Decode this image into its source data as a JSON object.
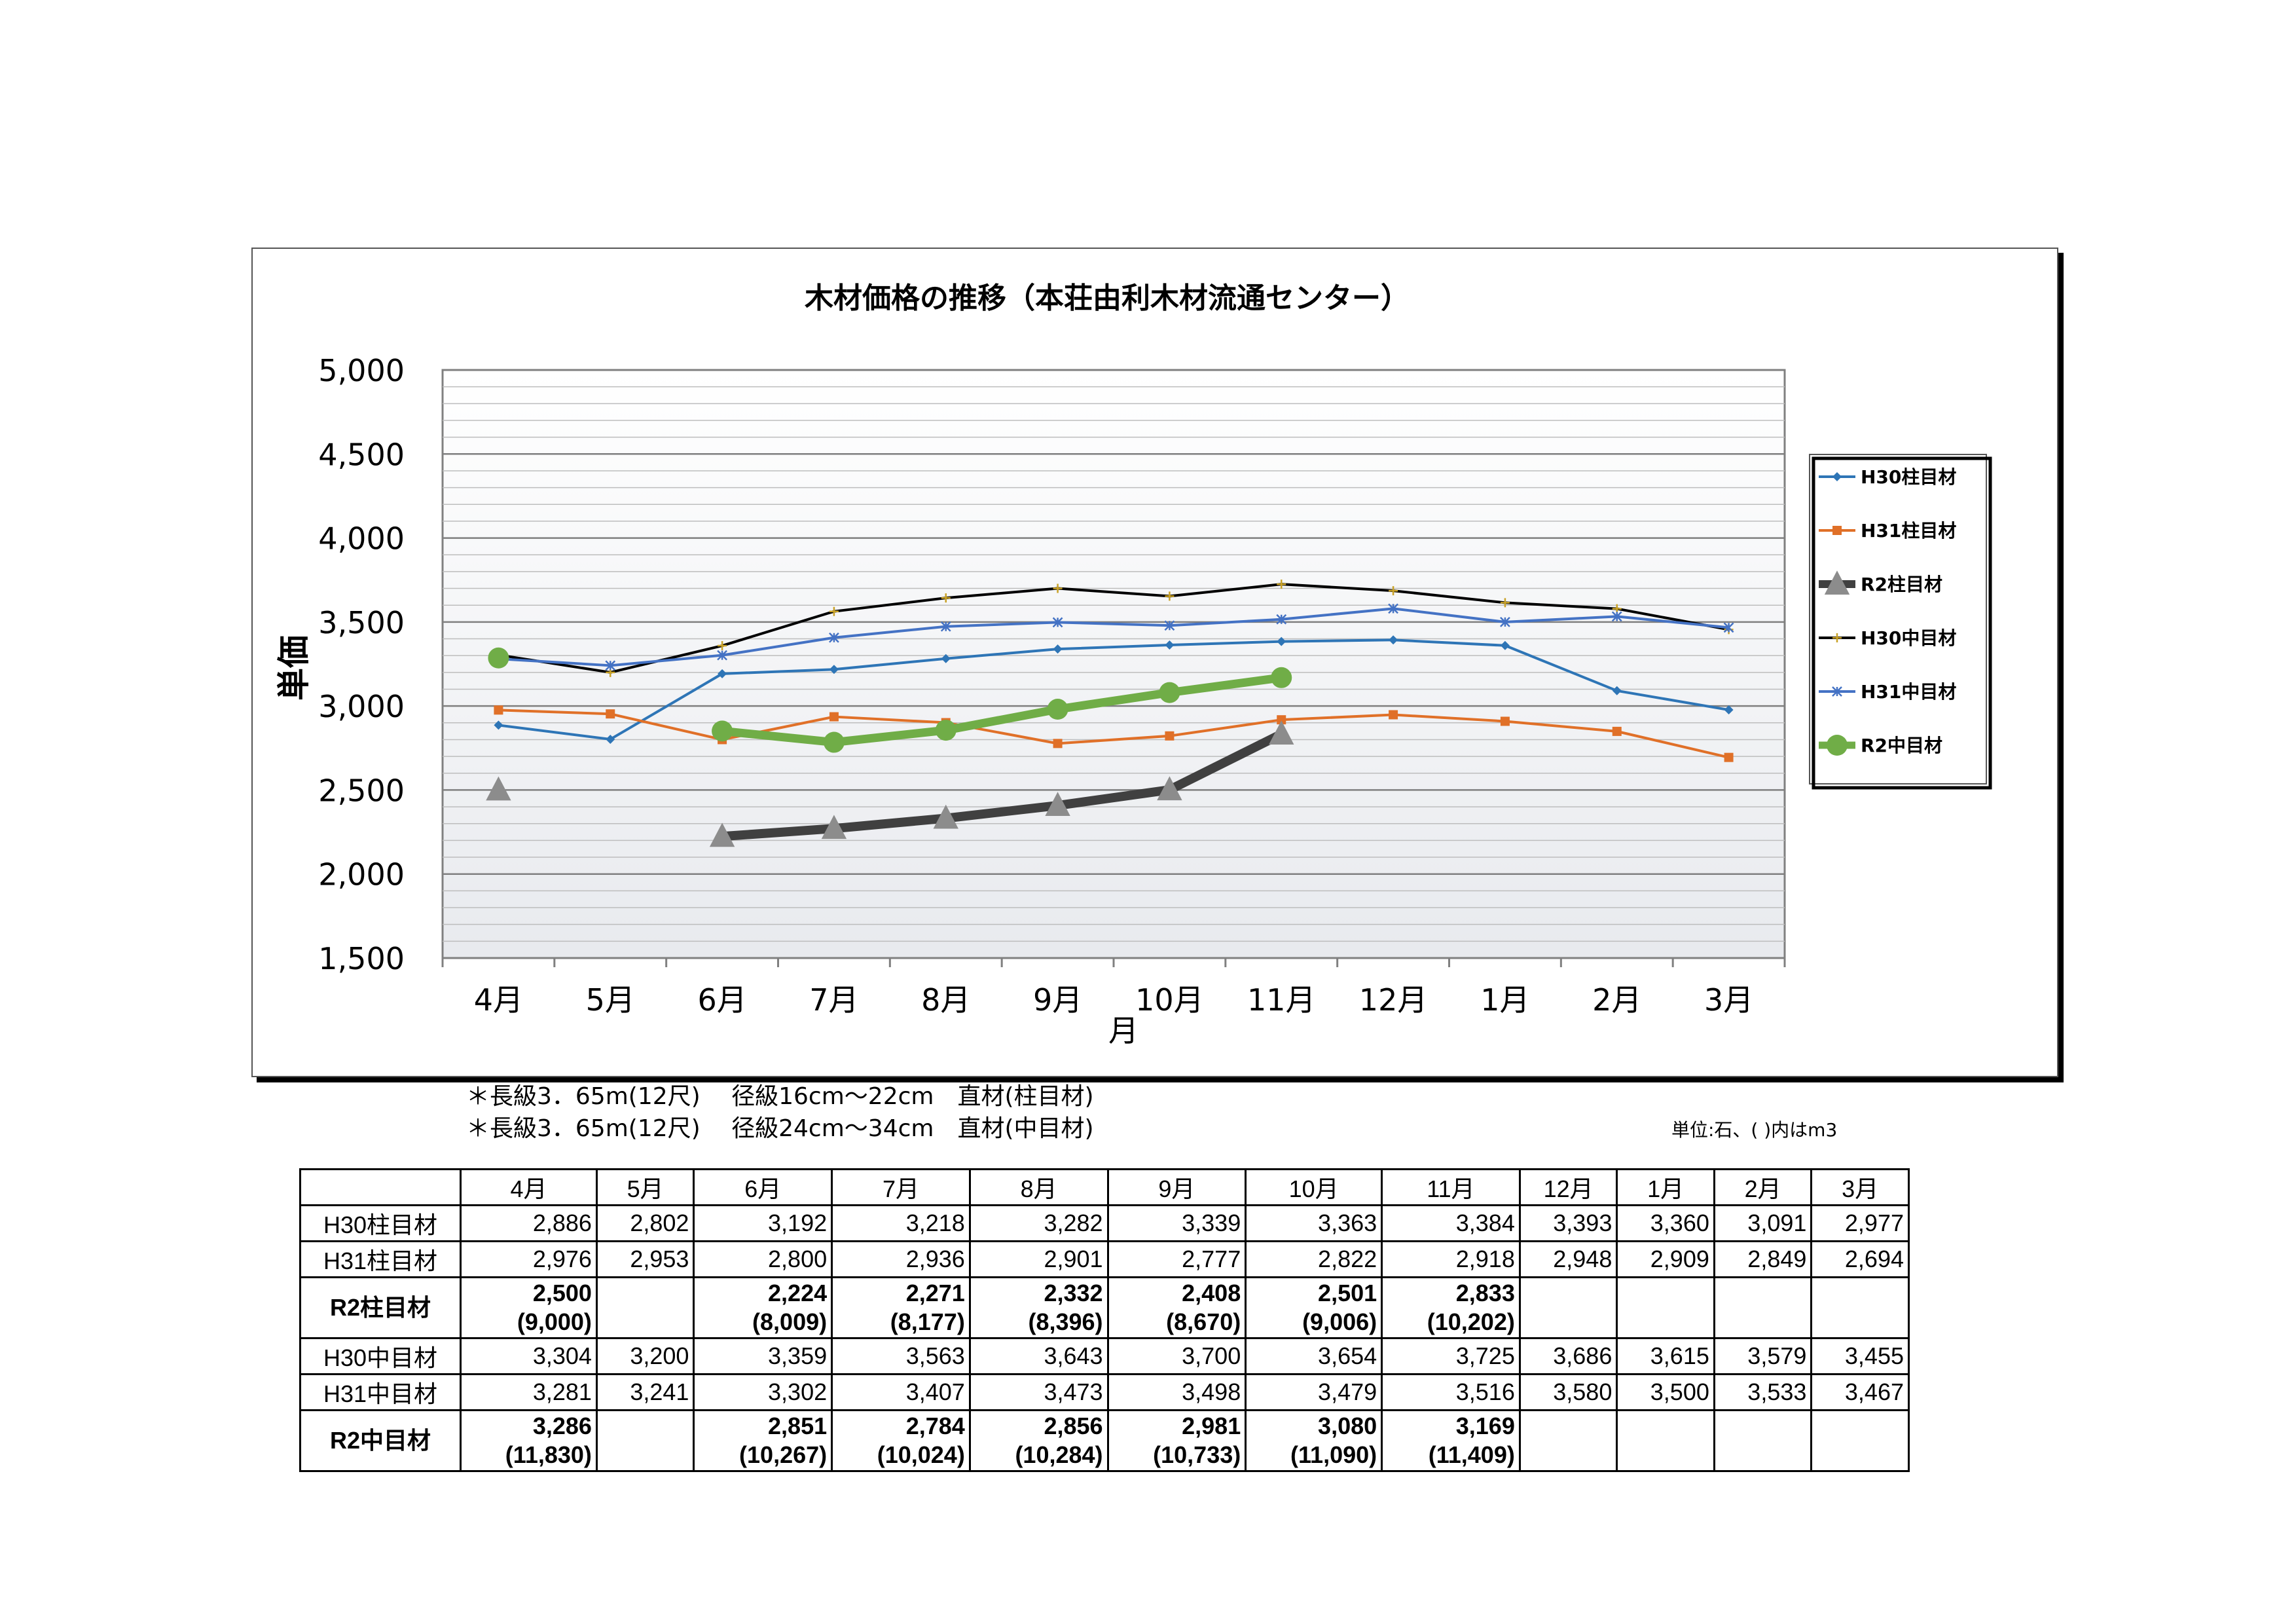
{
  "chart_data": {
    "type": "line",
    "title": "木材価格の推移（本荘由利木材流通センター）",
    "xlabel": "月",
    "ylabel": "単価",
    "categories": [
      "4月",
      "5月",
      "6月",
      "7月",
      "8月",
      "9月",
      "10月",
      "11月",
      "12月",
      "1月",
      "2月",
      "3月"
    ],
    "ylim": [
      1500,
      5000
    ],
    "yticks": [
      "1,500",
      "2,000",
      "2,500",
      "3,000",
      "3,500",
      "4,000",
      "4,500",
      "5,000"
    ],
    "grid": true,
    "legend_position": "right",
    "series": [
      {
        "name": "H30柱目材",
        "color": "#2e75b6",
        "marker": "diamond",
        "values": [
          2886,
          2802,
          3192,
          3218,
          3282,
          3339,
          3363,
          3384,
          3393,
          3360,
          3091,
          2977
        ]
      },
      {
        "name": "H31柱目材",
        "color": "#e07028",
        "marker": "square",
        "values": [
          2976,
          2953,
          2800,
          2936,
          2901,
          2777,
          2822,
          2918,
          2948,
          2909,
          2849,
          2694
        ]
      },
      {
        "name": "R2柱目材",
        "color": "#404040",
        "marker": "triangle",
        "values": [
          2500,
          null,
          2224,
          2271,
          2332,
          2408,
          2501,
          2833,
          null,
          null,
          null,
          null
        ]
      },
      {
        "name": "H30中目材",
        "color": "#000000",
        "marker": "plus",
        "values": [
          3304,
          3200,
          3359,
          3563,
          3643,
          3700,
          3654,
          3725,
          3686,
          3615,
          3579,
          3455
        ]
      },
      {
        "name": "H31中目材",
        "color": "#4472c4",
        "marker": "star",
        "values": [
          3281,
          3241,
          3302,
          3407,
          3473,
          3498,
          3479,
          3516,
          3580,
          3500,
          3533,
          3467
        ]
      },
      {
        "name": "R2中目材",
        "color": "#70ad47",
        "marker": "circle",
        "values": [
          3286,
          null,
          2851,
          2784,
          2856,
          2981,
          3080,
          3169,
          null,
          null,
          null,
          null
        ]
      }
    ]
  },
  "notes": [
    "＊長級3．65m(12尺)　 径級16cm～22cm　直材(柱目材)",
    "＊長級3．65m(12尺)　 径級24cm～34cm　直材(中目材)"
  ],
  "unit_note": "単位:石、( )内はm3",
  "table": {
    "header": [
      "",
      "4月",
      "5月",
      "6月",
      "7月",
      "8月",
      "9月",
      "10月",
      "11月",
      "12月",
      "1月",
      "2月",
      "3月"
    ],
    "rows": [
      {
        "label": "H30柱目材",
        "bold": false,
        "cells": [
          "2,886",
          "2,802",
          "3,192",
          "3,218",
          "3,282",
          "3,339",
          "3,363",
          "3,384",
          "3,393",
          "3,360",
          "3,091",
          "2,977"
        ],
        "sub": null
      },
      {
        "label": "H31柱目材",
        "bold": false,
        "cells": [
          "2,976",
          "2,953",
          "2,800",
          "2,936",
          "2,901",
          "2,777",
          "2,822",
          "2,918",
          "2,948",
          "2,909",
          "2,849",
          "2,694"
        ],
        "sub": null
      },
      {
        "label": "R2柱目材",
        "bold": true,
        "cells": [
          "2,500",
          "",
          "2,224",
          "2,271",
          "2,332",
          "2,408",
          "2,501",
          "2,833",
          "",
          "",
          "",
          ""
        ],
        "sub": [
          "(9,000)",
          "",
          "(8,009)",
          "(8,177)",
          "(8,396)",
          "(8,670)",
          "(9,006)",
          "(10,202)",
          "",
          "",
          "",
          ""
        ]
      },
      {
        "label": "H30中目材",
        "bold": false,
        "cells": [
          "3,304",
          "3,200",
          "3,359",
          "3,563",
          "3,643",
          "3,700",
          "3,654",
          "3,725",
          "3,686",
          "3,615",
          "3,579",
          "3,455"
        ],
        "sub": null
      },
      {
        "label": "H31中目材",
        "bold": false,
        "cells": [
          "3,281",
          "3,241",
          "3,302",
          "3,407",
          "3,473",
          "3,498",
          "3,479",
          "3,516",
          "3,580",
          "3,500",
          "3,533",
          "3,467"
        ],
        "sub": null
      },
      {
        "label": "R2中目材",
        "bold": true,
        "cells": [
          "3,286",
          "",
          "2,851",
          "2,784",
          "2,856",
          "2,981",
          "3,080",
          "3,169",
          "",
          "",
          "",
          ""
        ],
        "sub": [
          "(11,830)",
          "",
          "(10,267)",
          "(10,024)",
          "(10,284)",
          "(10,733)",
          "(11,090)",
          "(11,409)",
          "",
          "",
          "",
          ""
        ]
      }
    ]
  }
}
